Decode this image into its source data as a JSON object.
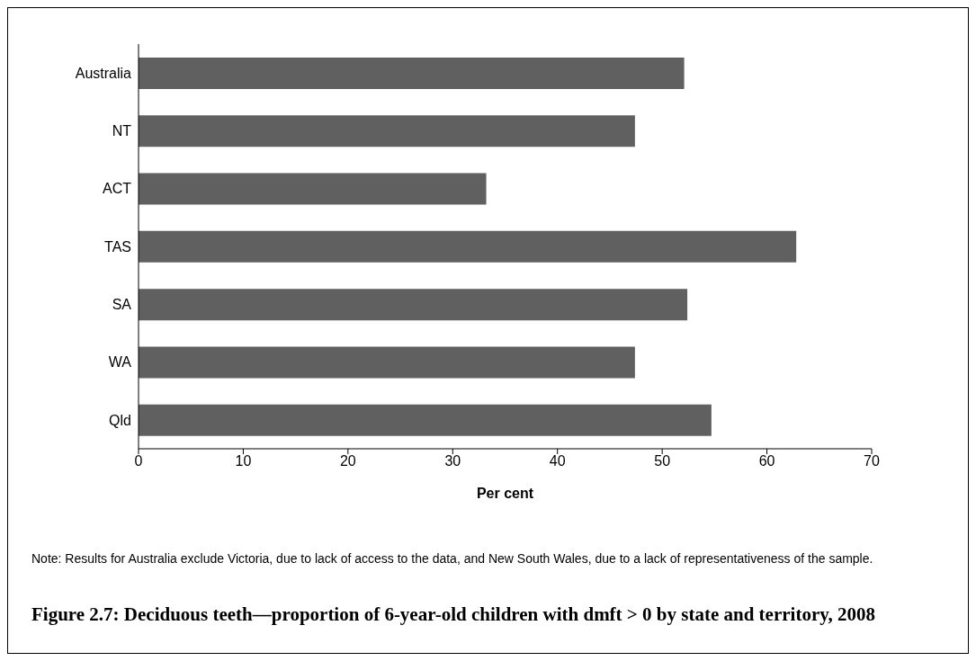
{
  "chart_data": {
    "type": "bar",
    "orientation": "horizontal",
    "title": "Figure 2.7: Deciduous teeth—proportion of 6-year-old children with dmft > 0 by state and territory, 2008",
    "xlabel": "Per cent",
    "categories": [
      "Australia",
      "NT",
      "ACT",
      "TAS",
      "SA",
      "WA",
      "Qld"
    ],
    "values": [
      52.1,
      47.4,
      33.2,
      62.8,
      52.4,
      47.4,
      54.7
    ],
    "color": "#606060",
    "xlim": [
      0,
      70
    ],
    "xticks": [
      0,
      10,
      20,
      30,
      40,
      50,
      60,
      70
    ],
    "grid": false,
    "legend": false,
    "annotations": [
      "Note: Results for Australia exclude Victoria, due to lack of access to the data, and New South Wales, due to a lack of representativeness of the sample."
    ]
  }
}
